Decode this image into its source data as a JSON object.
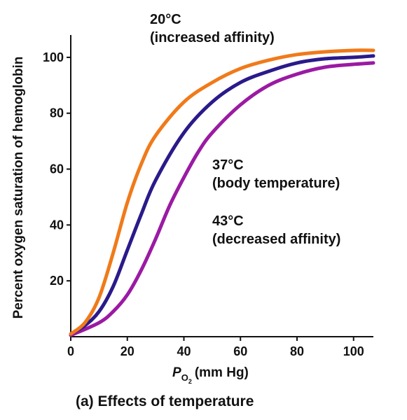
{
  "chart_data": {
    "type": "line",
    "xlabel_main": "P",
    "xlabel_sub": "O",
    "xlabel_subsub": "2",
    "xlabel_unit": "(mm Hg)",
    "ylabel": "Percent oxygen saturation of hemoglobin",
    "xlim": [
      0,
      107
    ],
    "ylim": [
      0,
      108
    ],
    "x_ticks": [
      0,
      20,
      40,
      60,
      80,
      100
    ],
    "y_ticks": [
      20,
      40,
      60,
      80,
      100
    ],
    "grid": false,
    "series": [
      {
        "name": "20°C (increased affinity)",
        "color": "#f07a1a",
        "x": [
          0,
          5,
          10,
          15,
          20,
          25,
          30,
          40,
          50,
          60,
          70,
          80,
          90,
          100,
          107
        ],
        "y": [
          1,
          5,
          14,
          30,
          48,
          62,
          72,
          84,
          91,
          96,
          99,
          101,
          102,
          102.5,
          102.5
        ]
      },
      {
        "name": "37°C (body temperature)",
        "color": "#2a1a8a",
        "x": [
          0,
          5,
          10,
          15,
          20,
          25,
          30,
          40,
          50,
          60,
          70,
          80,
          90,
          100,
          107
        ],
        "y": [
          1,
          4,
          9,
          18,
          31,
          44,
          56,
          73,
          84,
          91,
          95,
          98,
          99.5,
          100,
          100.5
        ]
      },
      {
        "name": "43°C (decreased affinity)",
        "color": "#9b1aa3",
        "x": [
          0,
          10,
          15,
          20,
          25,
          30,
          35,
          40,
          45,
          50,
          60,
          70,
          80,
          90,
          100,
          107
        ],
        "y": [
          0.5,
          5,
          9,
          15,
          24,
          35,
          47,
          57,
          66,
          73,
          83,
          90,
          94,
          96.5,
          97.5,
          98
        ]
      }
    ],
    "annotations": [
      {
        "line1": "20°C",
        "line2": "(increased affinity)"
      },
      {
        "line1": "37°C",
        "line2": "(body temperature)"
      },
      {
        "line1": "43°C",
        "line2": "(decreased affinity)"
      }
    ]
  },
  "caption": {
    "prefix": "(a)",
    "text": "Effects of temperature"
  }
}
